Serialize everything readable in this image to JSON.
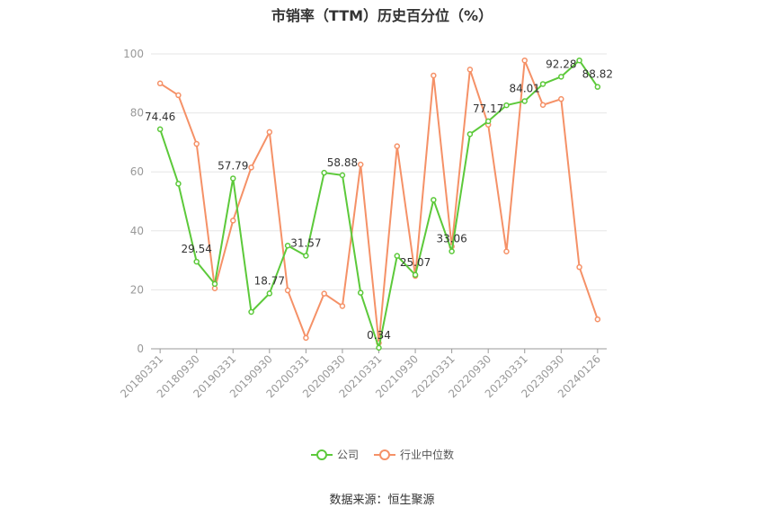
{
  "chart_data": {
    "type": "line",
    "title": "市销率（TTM）历史百分位（%）",
    "x": [
      "20180331",
      "20180630",
      "20180930",
      "20181231",
      "20190331",
      "20190630",
      "20190930",
      "20191231",
      "20200331",
      "20200630",
      "20200930",
      "20201231",
      "20210331",
      "20210630",
      "20210930",
      "20211231",
      "20220331",
      "20220630",
      "20220930",
      "20221231",
      "20230331",
      "20230630",
      "20230930",
      "20231231",
      "20240126"
    ],
    "x_tick_labels": [
      "20180331",
      "20180930",
      "20190331",
      "20190930",
      "20200331",
      "20200930",
      "20210331",
      "20210930",
      "20220331",
      "20220930",
      "20230331",
      "20230930",
      "20240126"
    ],
    "ylim": [
      0,
      100
    ],
    "y_ticks": [
      "0",
      "20",
      "40",
      "60",
      "80",
      "100"
    ],
    "grid": true,
    "series": [
      {
        "name": "公司",
        "color": "#5cc93a",
        "values": [
          74.46,
          56.0,
          29.54,
          22.0,
          57.79,
          12.5,
          18.77,
          35.0,
          31.57,
          59.7,
          58.88,
          19.0,
          0.34,
          31.5,
          25.07,
          50.5,
          33.06,
          72.8,
          77.17,
          82.6,
          84.01,
          89.8,
          92.28,
          97.8,
          88.82
        ],
        "labels": [
          "74.46",
          "",
          "29.54",
          "",
          "57.79",
          "",
          "18.77",
          "",
          "31.57",
          "",
          "58.88",
          "",
          "0.34",
          "",
          "25.07",
          "",
          "33.06",
          "",
          "77.17",
          "",
          "84.01",
          "",
          "92.28",
          "",
          "88.82"
        ]
      },
      {
        "name": "行业中位数",
        "color": "#f59167",
        "values": [
          90.0,
          86.0,
          69.5,
          20.5,
          43.5,
          61.5,
          73.5,
          19.8,
          3.7,
          18.7,
          14.5,
          62.5,
          2.0,
          68.7,
          24.7,
          92.7,
          34.7,
          94.7,
          76.0,
          33.0,
          97.8,
          82.7,
          84.7,
          27.7,
          10.0
        ]
      }
    ]
  },
  "legend": {
    "items": [
      {
        "label": "公司",
        "color": "#5cc93a"
      },
      {
        "label": "行业中位数",
        "color": "#f59167"
      }
    ]
  },
  "source": "数据来源：恒生聚源"
}
